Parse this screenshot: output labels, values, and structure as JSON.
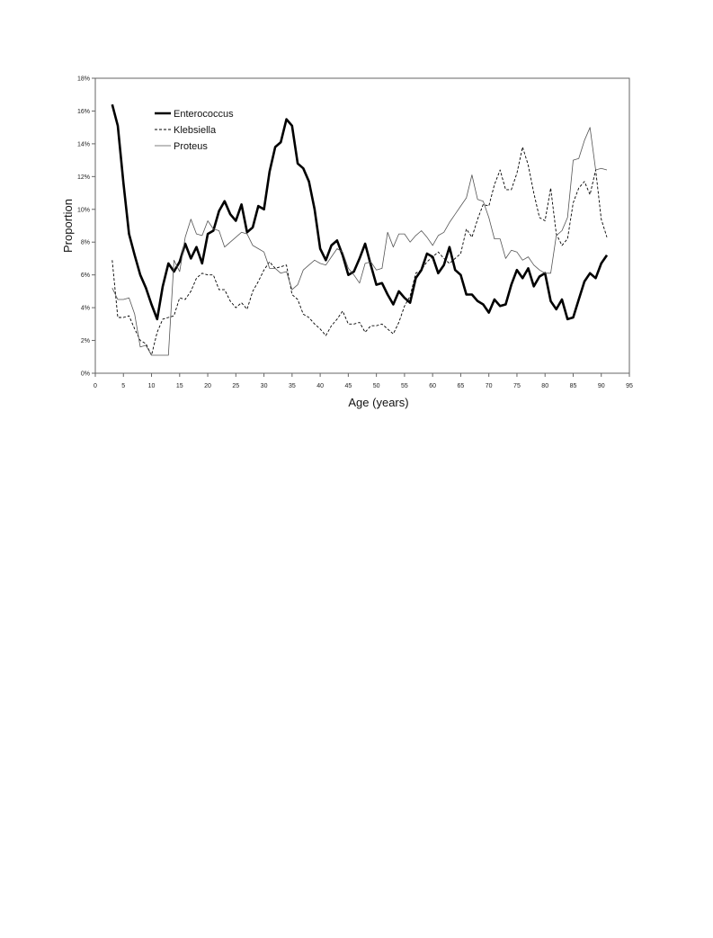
{
  "chart_data": {
    "type": "line",
    "title": "",
    "xlabel": "Age (years)",
    "ylabel": "Proportion",
    "xlim": [
      0,
      95
    ],
    "ylim": [
      0,
      18
    ],
    "x_ticks": [
      "0",
      "5",
      "10",
      "15",
      "20",
      "25",
      "30",
      "35",
      "40",
      "45",
      "50",
      "55",
      "60",
      "65",
      "70",
      "75",
      "80",
      "85",
      "90",
      "95"
    ],
    "y_ticks": [
      "0%",
      "2%",
      "4%",
      "6%",
      "8%",
      "10%",
      "12%",
      "14%",
      "16%",
      "18%"
    ],
    "grid": false,
    "legend_position": "top-left",
    "x": [
      3,
      4,
      5,
      6,
      7,
      8,
      9,
      10,
      11,
      12,
      13,
      14,
      15,
      16,
      17,
      18,
      19,
      20,
      21,
      22,
      23,
      24,
      25,
      26,
      27,
      28,
      29,
      30,
      31,
      32,
      33,
      34,
      35,
      36,
      37,
      38,
      39,
      40,
      41,
      42,
      43,
      44,
      45,
      46,
      47,
      48,
      49,
      50,
      51,
      52,
      53,
      54,
      55,
      56,
      57,
      58,
      59,
      60,
      61,
      62,
      63,
      64,
      65,
      66,
      67,
      68,
      69,
      70,
      71,
      72,
      73,
      74,
      75,
      76,
      77,
      78,
      79,
      80,
      81,
      82,
      83,
      84,
      85,
      86,
      87,
      88,
      89,
      90,
      91
    ],
    "series": [
      {
        "name": "Enterococcus",
        "style": "thick-solid",
        "color": "#000000",
        "values": [
          16.4,
          15.1,
          11.6,
          8.5,
          7.2,
          6.0,
          5.2,
          4.2,
          3.3,
          5.3,
          6.7,
          6.2,
          6.8,
          7.9,
          7.0,
          7.7,
          6.7,
          8.5,
          8.7,
          9.9,
          10.5,
          9.7,
          9.3,
          10.3,
          8.6,
          8.9,
          10.2,
          10.0,
          12.3,
          13.8,
          14.1,
          15.5,
          15.1,
          12.8,
          12.5,
          11.7,
          10.0,
          7.6,
          6.9,
          7.8,
          8.1,
          7.2,
          6.0,
          6.2,
          7.0,
          7.9,
          6.6,
          5.4,
          5.5,
          4.8,
          4.2,
          5.0,
          4.6,
          4.3,
          5.8,
          6.3,
          7.3,
          7.1,
          6.1,
          6.6,
          7.7,
          6.3,
          6.0,
          4.8,
          4.8,
          4.4,
          4.2,
          3.7,
          4.5,
          4.1,
          4.2,
          5.4,
          6.3,
          5.8,
          6.4,
          5.3,
          5.9,
          6.1,
          4.4,
          3.9,
          4.5,
          3.3,
          3.4,
          4.5,
          5.6,
          6.1,
          5.8,
          6.7,
          7.2
        ]
      },
      {
        "name": "Klebsiella",
        "style": "dashed",
        "color": "#000000",
        "values": [
          6.9,
          3.4,
          3.4,
          3.5,
          2.7,
          2.0,
          1.8,
          1.1,
          2.5,
          3.3,
          3.4,
          3.5,
          4.6,
          4.5,
          5.0,
          5.8,
          6.1,
          6.0,
          6.0,
          5.1,
          5.1,
          4.4,
          4.0,
          4.3,
          3.9,
          5.0,
          5.6,
          6.3,
          6.8,
          6.4,
          6.5,
          6.6,
          4.8,
          4.5,
          3.6,
          3.4,
          3.0,
          2.7,
          2.3,
          2.9,
          3.3,
          3.8,
          3.0,
          3.0,
          3.1,
          2.5,
          2.9,
          2.9,
          3.0,
          2.7,
          2.4,
          3.1,
          4.1,
          4.7,
          6.1,
          6.3,
          6.8,
          7.1,
          7.4,
          7.0,
          6.7,
          7.0,
          7.3,
          8.8,
          8.3,
          9.4,
          10.3,
          10.2,
          11.5,
          12.4,
          11.2,
          11.2,
          12.2,
          13.8,
          12.7,
          11.0,
          9.5,
          9.3,
          11.3,
          8.5,
          7.8,
          8.2,
          10.4,
          11.3,
          11.7,
          10.9,
          12.4,
          9.4,
          8.3
        ]
      },
      {
        "name": "Proteus",
        "style": "thin-solid",
        "color": "#000000",
        "values": [
          5.2,
          4.5,
          4.5,
          4.6,
          3.6,
          1.6,
          1.7,
          1.1,
          1.1,
          1.1,
          1.1,
          6.9,
          6.2,
          8.3,
          9.4,
          8.5,
          8.4,
          9.3,
          8.8,
          8.7,
          7.7,
          8.0,
          8.3,
          8.6,
          8.5,
          7.8,
          7.6,
          7.4,
          6.4,
          6.4,
          6.1,
          6.2,
          5.1,
          5.4,
          6.3,
          6.6,
          6.9,
          6.7,
          6.6,
          7.1,
          7.6,
          7.4,
          6.4,
          6.0,
          5.5,
          6.7,
          6.8,
          6.3,
          6.4,
          8.6,
          7.7,
          8.5,
          8.5,
          8.0,
          8.4,
          8.7,
          8.3,
          7.8,
          8.4,
          8.6,
          9.2,
          9.7,
          10.2,
          10.7,
          12.1,
          10.6,
          10.5,
          9.5,
          8.2,
          8.2,
          7.0,
          7.5,
          7.4,
          6.9,
          7.1,
          6.6,
          6.3,
          6.1,
          6.1,
          8.4,
          8.7,
          9.5,
          13.0,
          13.1,
          14.2,
          15.0,
          12.4,
          12.5,
          12.4
        ]
      }
    ]
  }
}
